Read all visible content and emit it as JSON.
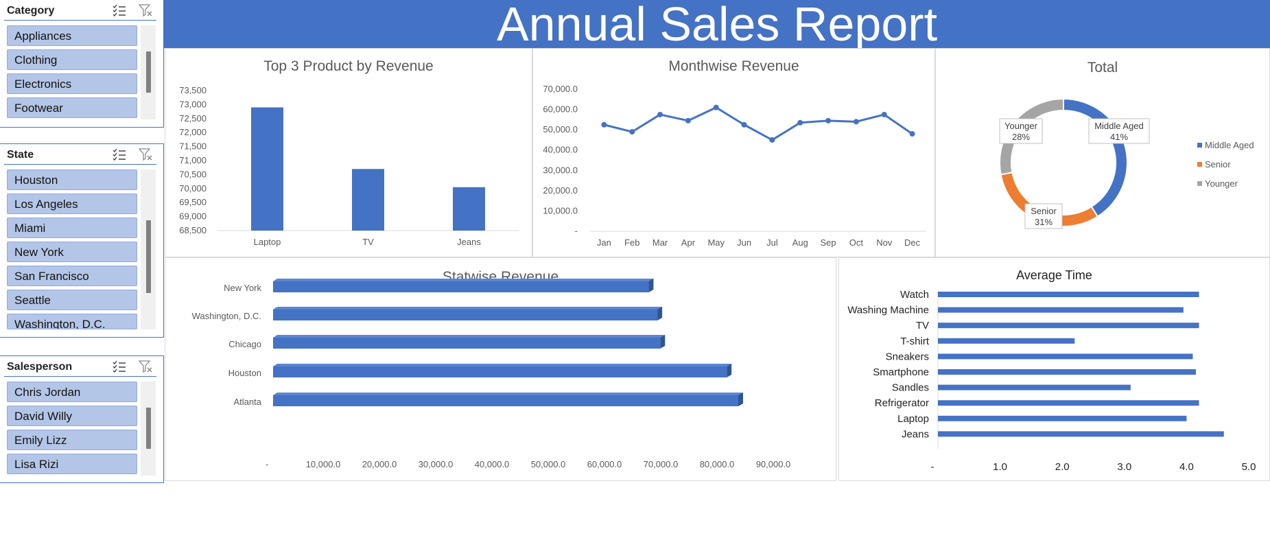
{
  "banner": {
    "title": "Annual Sales Report"
  },
  "slicers": {
    "category": {
      "title": "Category",
      "items": [
        "Appliances",
        "Clothing",
        "Electronics",
        "Footwear"
      ]
    },
    "state": {
      "title": "State",
      "items": [
        "Houston",
        "Los Angeles",
        "Miami",
        "New York",
        "San Francisco",
        "Seattle",
        "Washington, D.C."
      ]
    },
    "salesperson": {
      "title": "Salesperson",
      "items": [
        "Chris Jordan",
        "David Willy",
        "Emily Lizz",
        "Lisa Rizi"
      ]
    }
  },
  "colors": {
    "blue": "#4472c4",
    "orange": "#ed7d31",
    "gray": "#a5a5a5",
    "slicer_item": "#b4c6e7"
  },
  "chart_data": [
    {
      "id": "top3",
      "type": "bar",
      "title": "Top 3 Product by Revenue",
      "categories": [
        "Laptop",
        "TV",
        "Jeans"
      ],
      "values": [
        72900,
        70700,
        70050
      ],
      "ylim": [
        68500,
        73500
      ],
      "yticks": [
        "73,500",
        "73,000",
        "72,500",
        "72,000",
        "71,500",
        "71,000",
        "70,500",
        "70,000",
        "69,500",
        "69,000",
        "68,500"
      ]
    },
    {
      "id": "monthwise",
      "type": "line",
      "title": "Monthwise Revenue",
      "categories": [
        "Jan",
        "Feb",
        "Mar",
        "Apr",
        "May",
        "Jun",
        "Jul",
        "Aug",
        "Sep",
        "Oct",
        "Nov",
        "Dec"
      ],
      "values": [
        52500,
        49000,
        57500,
        54500,
        61000,
        52500,
        45000,
        53500,
        54500,
        54000,
        57500,
        48000
      ],
      "ylim": [
        0,
        70000
      ],
      "yticks": [
        "70,000.0",
        "60,000.0",
        "50,000.0",
        "40,000.0",
        "30,000.0",
        "20,000.0",
        "10,000.0",
        "-"
      ]
    },
    {
      "id": "total",
      "type": "pie",
      "title": "Total",
      "slices": [
        {
          "name": "Middle Aged",
          "value": 41,
          "label": "41%",
          "color": "#4472c4"
        },
        {
          "name": "Senior",
          "value": 31,
          "label": "31%",
          "color": "#ed7d31"
        },
        {
          "name": "Younger",
          "value": 28,
          "label": "28%",
          "color": "#a5a5a5"
        }
      ],
      "legend": [
        "Middle Aged",
        "Senior",
        "Younger"
      ],
      "legend_position": "right"
    },
    {
      "id": "statwise",
      "type": "bar",
      "orientation": "horizontal",
      "title": "Statwise Revenue",
      "categories": [
        "New York",
        "Washington, D.C.",
        "Chicago",
        "Houston",
        "Atlanta"
      ],
      "values": [
        65000,
        66500,
        67000,
        78500,
        80500
      ],
      "xlim": [
        0,
        90000
      ],
      "xticks": [
        "-",
        "10,000.0",
        "20,000.0",
        "30,000.0",
        "40,000.0",
        "50,000.0",
        "60,000.0",
        "70,000.0",
        "80,000.0",
        "90,000.0"
      ]
    },
    {
      "id": "avgtime",
      "type": "bar",
      "orientation": "horizontal",
      "title": "Average Time",
      "categories": [
        "Watch",
        "Washing Machine",
        "TV",
        "T-shirt",
        "Sneakers",
        "Smartphone",
        "Sandles",
        "Refrigerator",
        "Laptop",
        "Jeans"
      ],
      "values": [
        4.2,
        3.95,
        4.2,
        2.2,
        4.1,
        4.15,
        3.1,
        4.2,
        4.0,
        4.6
      ],
      "xlim": [
        0,
        5
      ],
      "xticks": [
        "-",
        "1.0",
        "2.0",
        "3.0",
        "4.0",
        "5.0"
      ]
    }
  ]
}
